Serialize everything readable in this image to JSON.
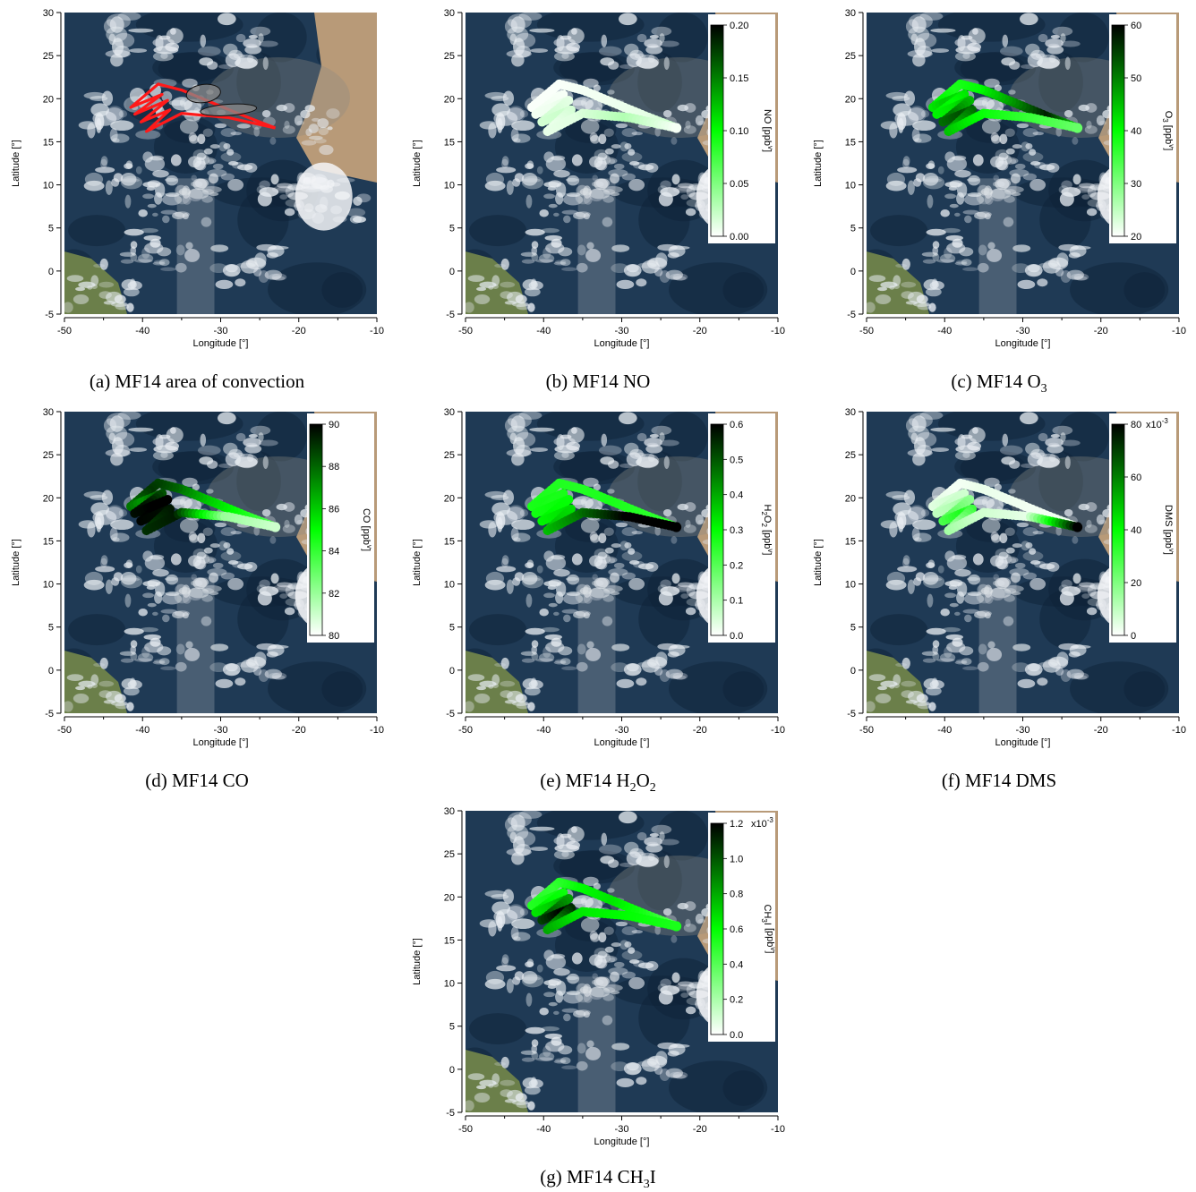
{
  "chart_data": [
    {
      "id": "a",
      "type": "map",
      "caption": "(a) MF14 area of convection",
      "xlabel": "Longitude [°]",
      "ylabel": "Latitude [°]",
      "xlim": [
        -50,
        -10
      ],
      "ylim": [
        -5,
        30
      ],
      "xticks": [
        "-50",
        "-40",
        "-30",
        "-20",
        "-10"
      ],
      "yticks": [
        "-5",
        "0",
        "5",
        "10",
        "15",
        "20",
        "25",
        "30"
      ],
      "track_color": "#ff1a1a",
      "convection_areas": [
        {
          "center": [
            -32.2,
            20.6
          ],
          "semi_axes_deg": [
            2.2,
            1.05
          ],
          "rotation": -8
        },
        {
          "center": [
            -29.0,
            18.7
          ],
          "semi_axes_deg": [
            3.6,
            0.65
          ],
          "rotation": -4
        }
      ]
    },
    {
      "id": "b",
      "type": "colored-track",
      "caption": "(b) MF14 NO",
      "xlabel": "Longitude [°]",
      "ylabel": "Latitude [°]",
      "xlim": [
        -50,
        -10
      ],
      "ylim": [
        -5,
        30
      ],
      "xticks": [
        "-50",
        "-40",
        "-30",
        "-20",
        "-10"
      ],
      "yticks": [
        "-5",
        "0",
        "5",
        "10",
        "15",
        "20",
        "25",
        "30"
      ],
      "colorbar": {
        "label": "NO [ppb",
        "label_sup": "v",
        "label_end": "]",
        "range": [
          0,
          0.2
        ],
        "ticks": [
          "0.00",
          "0.05",
          "0.10",
          "0.15",
          "0.20"
        ],
        "multiplier": ""
      },
      "color_pattern": [
        0.12,
        0.05,
        0.03,
        0.02,
        0.01,
        0.01,
        0.02,
        0.03,
        0.08,
        0.1,
        0.04,
        0.06,
        0.15,
        0.02
      ]
    },
    {
      "id": "c",
      "type": "colored-track",
      "caption_pre": "(c) MF14 O",
      "caption_sub": "3",
      "xlabel": "Longitude [°]",
      "ylabel": "Latitude [°]",
      "xlim": [
        -50,
        -10
      ],
      "ylim": [
        -5,
        30
      ],
      "xticks": [
        "-50",
        "-40",
        "-30",
        "-20",
        "-10"
      ],
      "yticks": [
        "-5",
        "0",
        "5",
        "10",
        "15",
        "20",
        "25",
        "30"
      ],
      "colorbar": {
        "label": "O",
        "label_sub": "3",
        "label_rest": " [ppb",
        "label_sup": "v",
        "label_end": "]",
        "range": [
          20,
          60
        ],
        "ticks": [
          "20",
          "30",
          "40",
          "50",
          "60"
        ],
        "multiplier": ""
      },
      "color_pattern": [
        0.55,
        0.95,
        0.7,
        0.5,
        0.45,
        0.6,
        0.5,
        0.55,
        0.75,
        0.85,
        0.65,
        0.5,
        0.4,
        0.3
      ]
    },
    {
      "id": "d",
      "type": "colored-track",
      "caption": "(d) MF14 CO",
      "xlabel": "Longitude [°]",
      "ylabel": "Latitude [°]",
      "xlim": [
        -50,
        -10
      ],
      "ylim": [
        -5,
        30
      ],
      "xticks": [
        "-50",
        "-40",
        "-30",
        "-20",
        "-10"
      ],
      "yticks": [
        "-5",
        "0",
        "5",
        "10",
        "15",
        "20",
        "25",
        "30"
      ],
      "colorbar": {
        "label": "CO [ppb",
        "label_sup": "v",
        "label_end": "]",
        "range": [
          80,
          90
        ],
        "ticks": [
          "80",
          "82",
          "84",
          "86",
          "88",
          "90"
        ],
        "multiplier": ""
      },
      "color_pattern": [
        0.3,
        0.45,
        0.6,
        0.8,
        0.9,
        0.7,
        0.95,
        1.0,
        1.0,
        0.98,
        0.9,
        0.95,
        0.2,
        0.1
      ]
    },
    {
      "id": "e",
      "type": "colored-track",
      "caption_pre": "(e) MF14 H",
      "caption_sub": "2",
      "caption_mid": "O",
      "caption_sub2": "2",
      "xlabel": "Longitude [°]",
      "ylabel": "Latitude [°]",
      "xlim": [
        -50,
        -10
      ],
      "ylim": [
        -5,
        30
      ],
      "xticks": [
        "-50",
        "-40",
        "-30",
        "-20",
        "-10"
      ],
      "yticks": [
        "-5",
        "0",
        "5",
        "10",
        "15",
        "20",
        "25",
        "30"
      ],
      "colorbar": {
        "label": "H",
        "label_sub": "2",
        "label_mid": "O",
        "label_sub2": "2",
        "label_rest": " [ppb",
        "label_sup": "v",
        "label_end": "]",
        "range": [
          0,
          0.6
        ],
        "ticks": [
          "0.0",
          "0.1",
          "0.2",
          "0.3",
          "0.4",
          "0.5",
          "0.6"
        ],
        "multiplier": ""
      },
      "color_pattern": [
        0.4,
        0.42,
        0.45,
        0.43,
        0.44,
        0.46,
        0.45,
        0.48,
        0.5,
        0.55,
        0.6,
        0.75,
        1.0,
        1.0
      ]
    },
    {
      "id": "f",
      "type": "colored-track",
      "caption": "(f) MF14 DMS",
      "xlabel": "Longitude [°]",
      "ylabel": "Latitude [°]",
      "xlim": [
        -50,
        -10
      ],
      "ylim": [
        -5,
        30
      ],
      "xticks": [
        "-50",
        "-40",
        "-30",
        "-20",
        "-10"
      ],
      "yticks": [
        "-5",
        "0",
        "5",
        "10",
        "15",
        "20",
        "25",
        "30"
      ],
      "colorbar": {
        "label": "DMS [ppb",
        "label_sup": "v",
        "label_end": "]",
        "range": [
          0,
          80
        ],
        "ticks": [
          "0",
          "20",
          "40",
          "60",
          "80"
        ],
        "multiplier": "x10",
        "multiplier_exp": "-3"
      },
      "color_pattern": [
        0.05,
        0.02,
        0.03,
        0.04,
        0.02,
        0.08,
        0.1,
        0.15,
        0.3,
        0.45,
        0.2,
        0.1,
        0.05,
        1.0
      ]
    },
    {
      "id": "g",
      "type": "colored-track",
      "caption_pre": "(g) MF14 CH",
      "caption_sub": "3",
      "caption_mid": "I",
      "xlabel": "Longitude [°]",
      "ylabel": "Latitude [°]",
      "xlim": [
        -50,
        -10
      ],
      "ylim": [
        -5,
        30
      ],
      "xticks": [
        "-50",
        "-40",
        "-30",
        "-20",
        "-10"
      ],
      "yticks": [
        "-5",
        "0",
        "5",
        "10",
        "15",
        "20",
        "25",
        "30"
      ],
      "colorbar": {
        "label": "CH",
        "label_sub": "3",
        "label_mid": "I",
        "label_rest": " [ppb",
        "label_sup": "v",
        "label_end": "]",
        "range": [
          0,
          1.2
        ],
        "ticks": [
          "0.0",
          "0.2",
          "0.4",
          "0.6",
          "0.8",
          "1.0",
          "1.2"
        ],
        "multiplier": "x10",
        "multiplier_exp": "-3"
      },
      "color_pattern": [
        0.3,
        0.45,
        0.55,
        0.5,
        0.4,
        0.45,
        0.5,
        0.6,
        0.8,
        1.0,
        0.7,
        0.55,
        0.5,
        0.45
      ]
    }
  ],
  "flight_track": [
    [
      -23.0,
      16.6
    ],
    [
      -27.0,
      18.0
    ],
    [
      -31.0,
      19.5
    ],
    [
      -35.0,
      21.0
    ],
    [
      -38.0,
      21.7
    ],
    [
      -41.5,
      19.0
    ],
    [
      -37.5,
      20.5
    ],
    [
      -41.0,
      18.2
    ],
    [
      -36.8,
      19.8
    ],
    [
      -40.2,
      17.3
    ],
    [
      -36.5,
      18.7
    ],
    [
      -39.5,
      16.2
    ],
    [
      -35.0,
      18.3
    ],
    [
      -29.0,
      17.8
    ],
    [
      -23.0,
      16.6
    ]
  ],
  "map_colors": {
    "ocean": "#1f3a55",
    "ocean_dark": "#0e2238",
    "cloud": "#e8edf2",
    "land_south": "#6b7f4a",
    "land_africa": "#b89a78",
    "dust": "#8d8a80"
  }
}
